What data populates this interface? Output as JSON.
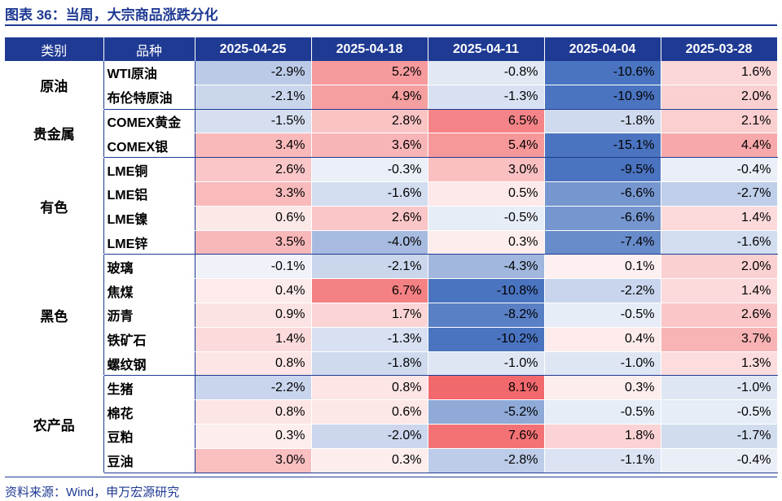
{
  "title": "图表 36：当周，大宗商品涨跌分化",
  "source": "资料来源：Wind，申万宏源研究",
  "colors": {
    "header_bg": "#1f3a93",
    "positive": "#f05a5e",
    "negative": "#4a74c0"
  },
  "chart_data": {
    "type": "table",
    "columns": [
      "类别",
      "品种",
      "2025-04-25",
      "2025-04-18",
      "2025-04-11",
      "2025-04-04",
      "2025-03-28"
    ],
    "groups": [
      {
        "category": "原油",
        "rows": [
          {
            "product": "WTI原油",
            "values": [
              "-2.9%",
              "5.2%",
              "-0.8%",
              "-10.6%",
              "1.6%"
            ]
          },
          {
            "product": "布伦特原油",
            "values": [
              "-2.1%",
              "4.9%",
              "-1.3%",
              "-10.9%",
              "2.0%"
            ]
          }
        ]
      },
      {
        "category": "贵金属",
        "rows": [
          {
            "product": "COMEX黄金",
            "values": [
              "-1.5%",
              "2.8%",
              "6.5%",
              "-1.8%",
              "2.1%"
            ]
          },
          {
            "product": "COMEX银",
            "values": [
              "3.4%",
              "3.6%",
              "5.4%",
              "-15.1%",
              "4.4%"
            ]
          }
        ]
      },
      {
        "category": "有色",
        "rows": [
          {
            "product": "LME铜",
            "values": [
              "2.6%",
              "-0.3%",
              "3.0%",
              "-9.5%",
              "-0.4%"
            ]
          },
          {
            "product": "LME铝",
            "values": [
              "3.3%",
              "-1.6%",
              "0.5%",
              "-6.6%",
              "-2.7%"
            ]
          },
          {
            "product": "LME镍",
            "values": [
              "0.6%",
              "2.6%",
              "-0.5%",
              "-6.6%",
              "1.4%"
            ]
          },
          {
            "product": "LME锌",
            "values": [
              "3.5%",
              "-4.0%",
              "0.3%",
              "-7.4%",
              "-1.6%"
            ]
          }
        ]
      },
      {
        "category": "黑色",
        "rows": [
          {
            "product": "玻璃",
            "values": [
              "-0.1%",
              "-2.1%",
              "-4.3%",
              "0.1%",
              "2.0%"
            ]
          },
          {
            "product": "焦煤",
            "values": [
              "0.4%",
              "6.7%",
              "-10.8%",
              "-2.2%",
              "1.4%"
            ]
          },
          {
            "product": "沥青",
            "values": [
              "0.9%",
              "1.7%",
              "-8.2%",
              "-0.5%",
              "2.6%"
            ]
          },
          {
            "product": "铁矿石",
            "values": [
              "1.4%",
              "-1.3%",
              "-10.2%",
              "0.4%",
              "3.7%"
            ]
          },
          {
            "product": "螺纹钢",
            "values": [
              "0.8%",
              "-1.8%",
              "-1.0%",
              "-1.0%",
              "1.3%"
            ]
          }
        ]
      },
      {
        "category": "农产品",
        "rows": [
          {
            "product": "生猪",
            "values": [
              "-2.2%",
              "0.8%",
              "8.1%",
              "0.3%",
              "-1.0%"
            ]
          },
          {
            "product": "棉花",
            "values": [
              "0.8%",
              "0.6%",
              "-5.2%",
              "-0.5%",
              "-0.5%"
            ]
          },
          {
            "product": "豆粕",
            "values": [
              "0.3%",
              "-2.0%",
              "7.6%",
              "1.8%",
              "-1.7%"
            ]
          },
          {
            "product": "豆油",
            "values": [
              "3.0%",
              "0.3%",
              "-2.8%",
              "-1.1%",
              "-0.4%"
            ]
          }
        ]
      }
    ]
  }
}
